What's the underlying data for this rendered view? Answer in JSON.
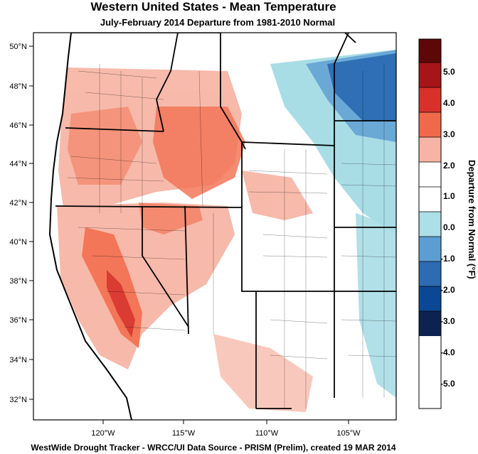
{
  "title": "Western United States - Mean Temperature",
  "subtitle": "July-February 2014  Departure from 1981-2010 Normal",
  "footer": "WestWide Drought Tracker - WRCC/UI  Data Source - PRISM (Prelim), created 19 MAR 2014",
  "map": {
    "lat_labels": [
      "50°N",
      "48°N",
      "46°N",
      "44°N",
      "42°N",
      "40°N",
      "38°N",
      "36°N",
      "34°N",
      "32°N"
    ],
    "lon_labels": [
      "120°W",
      "115°W",
      "110°W",
      "105°W"
    ],
    "colors": {
      "background": "#ffffff",
      "warm_light": "#f7b6a6",
      "warm_mid": "#f26f4f",
      "warm_strong": "#d93128",
      "cool_light": "#a9dde6",
      "cool_mid": "#6aa9d6",
      "cool_strong": "#2e6fb5",
      "boundary": "#000000"
    }
  },
  "colorbar": {
    "title": "Departure from Normal (°F)",
    "labels": [
      "5.0",
      "4.0",
      "3.0",
      "2.0",
      "1.0",
      "0.0",
      "-1.0",
      "-2.0",
      "-3.0",
      "-4.0",
      "-5.0"
    ],
    "colors": [
      "#5e0707",
      "#a61517",
      "#d9302a",
      "#f0694b",
      "#f7b3a3",
      "#ffffff",
      "#ffffff",
      "#acdfe8",
      "#5d9ed2",
      "#2d6bb3",
      "#0a4895",
      "#0c2350"
    ]
  }
}
